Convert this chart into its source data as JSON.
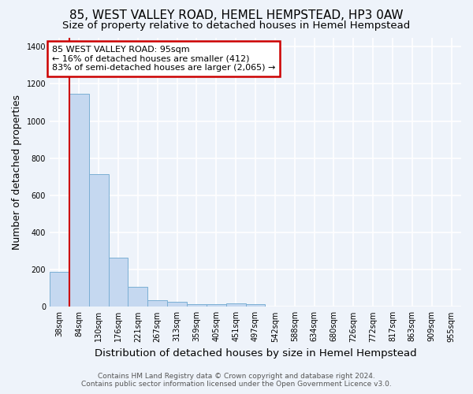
{
  "title": "85, WEST VALLEY ROAD, HEMEL HEMPSTEAD, HP3 0AW",
  "subtitle": "Size of property relative to detached houses in Hemel Hempstead",
  "xlabel": "Distribution of detached houses by size in Hemel Hempstead",
  "ylabel": "Number of detached properties",
  "footer_line1": "Contains HM Land Registry data © Crown copyright and database right 2024.",
  "footer_line2": "Contains public sector information licensed under the Open Government Licence v3.0.",
  "bar_labels": [
    "38sqm",
    "84sqm",
    "130sqm",
    "176sqm",
    "221sqm",
    "267sqm",
    "313sqm",
    "359sqm",
    "405sqm",
    "451sqm",
    "497sqm",
    "542sqm",
    "588sqm",
    "634sqm",
    "680sqm",
    "726sqm",
    "772sqm",
    "817sqm",
    "863sqm",
    "909sqm",
    "955sqm"
  ],
  "bar_values": [
    190,
    1145,
    715,
    265,
    107,
    35,
    27,
    14,
    12,
    20,
    13,
    0,
    0,
    0,
    0,
    0,
    0,
    0,
    0,
    0,
    0
  ],
  "bar_color": "#c5d8f0",
  "bar_edge_color": "#7bafd4",
  "highlight_bar_index": 1,
  "vline_x_offset": 0.5,
  "annotation_text_line1": "85 WEST VALLEY ROAD: 95sqm",
  "annotation_text_line2": "← 16% of detached houses are smaller (412)",
  "annotation_text_line3": "83% of semi-detached houses are larger (2,065) →",
  "annotation_box_facecolor": "#ffffff",
  "annotation_box_edgecolor": "#cc0000",
  "ylim": [
    0,
    1450
  ],
  "yticks": [
    0,
    200,
    400,
    600,
    800,
    1000,
    1200,
    1400
  ],
  "bg_color": "#eef3fa",
  "grid_color": "#ffffff",
  "title_fontsize": 11,
  "subtitle_fontsize": 9.5,
  "ylabel_fontsize": 9,
  "xlabel_fontsize": 9.5,
  "tick_fontsize": 7,
  "annotation_fontsize": 8,
  "footer_fontsize": 6.5
}
